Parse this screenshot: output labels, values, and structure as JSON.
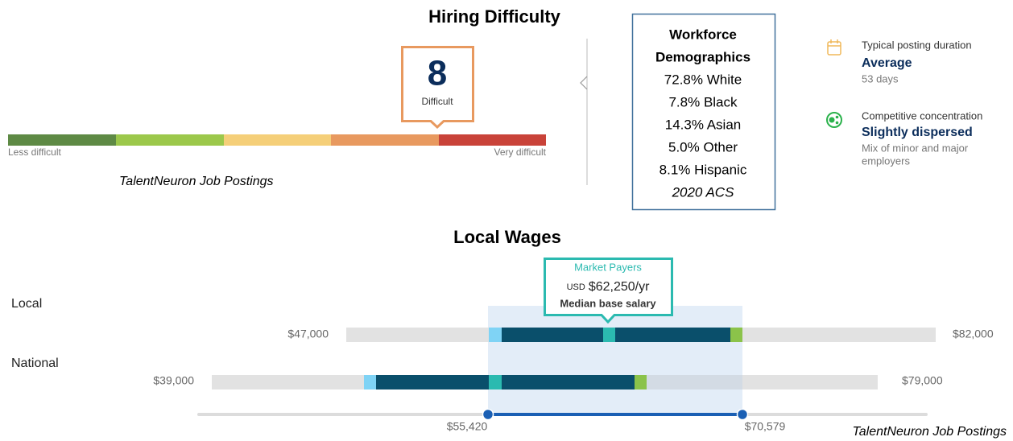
{
  "hiring": {
    "title": "Hiring Difficulty",
    "score": "8",
    "score_label": "Difficult",
    "scale_min": "Less difficult",
    "scale_max": "Very difficult",
    "source": "TalentNeuron Job Postings"
  },
  "demographics": {
    "title": [
      "Workforce",
      "Demographics"
    ],
    "items": [
      "72.8% White",
      "7.8% Black",
      "14.3% Asian",
      "5.0% Other",
      "8.1% Hispanic"
    ],
    "source": "2020 ACS"
  },
  "stats": [
    {
      "label": "Typical posting duration",
      "value": "Average",
      "detail": [
        "53 days"
      ]
    },
    {
      "label": "Competitive concentration",
      "value": "Slightly dispersed",
      "detail": [
        "Mix of minor and major",
        "employers"
      ]
    }
  ],
  "wages": {
    "title": "Local Wages",
    "tooltip": {
      "heading": "Market Payers",
      "currency": "USD",
      "amount": "$62,250/yr",
      "caption": "Median base salary"
    },
    "rows": [
      {
        "name": "Local",
        "min": "$47,000",
        "max": "$82,000"
      },
      {
        "name": "National",
        "min": "$39,000",
        "max": "$79,000"
      }
    ],
    "range": {
      "low": "$55,420",
      "high": "$70,579"
    },
    "source": "TalentNeuron Job Postings"
  }
}
